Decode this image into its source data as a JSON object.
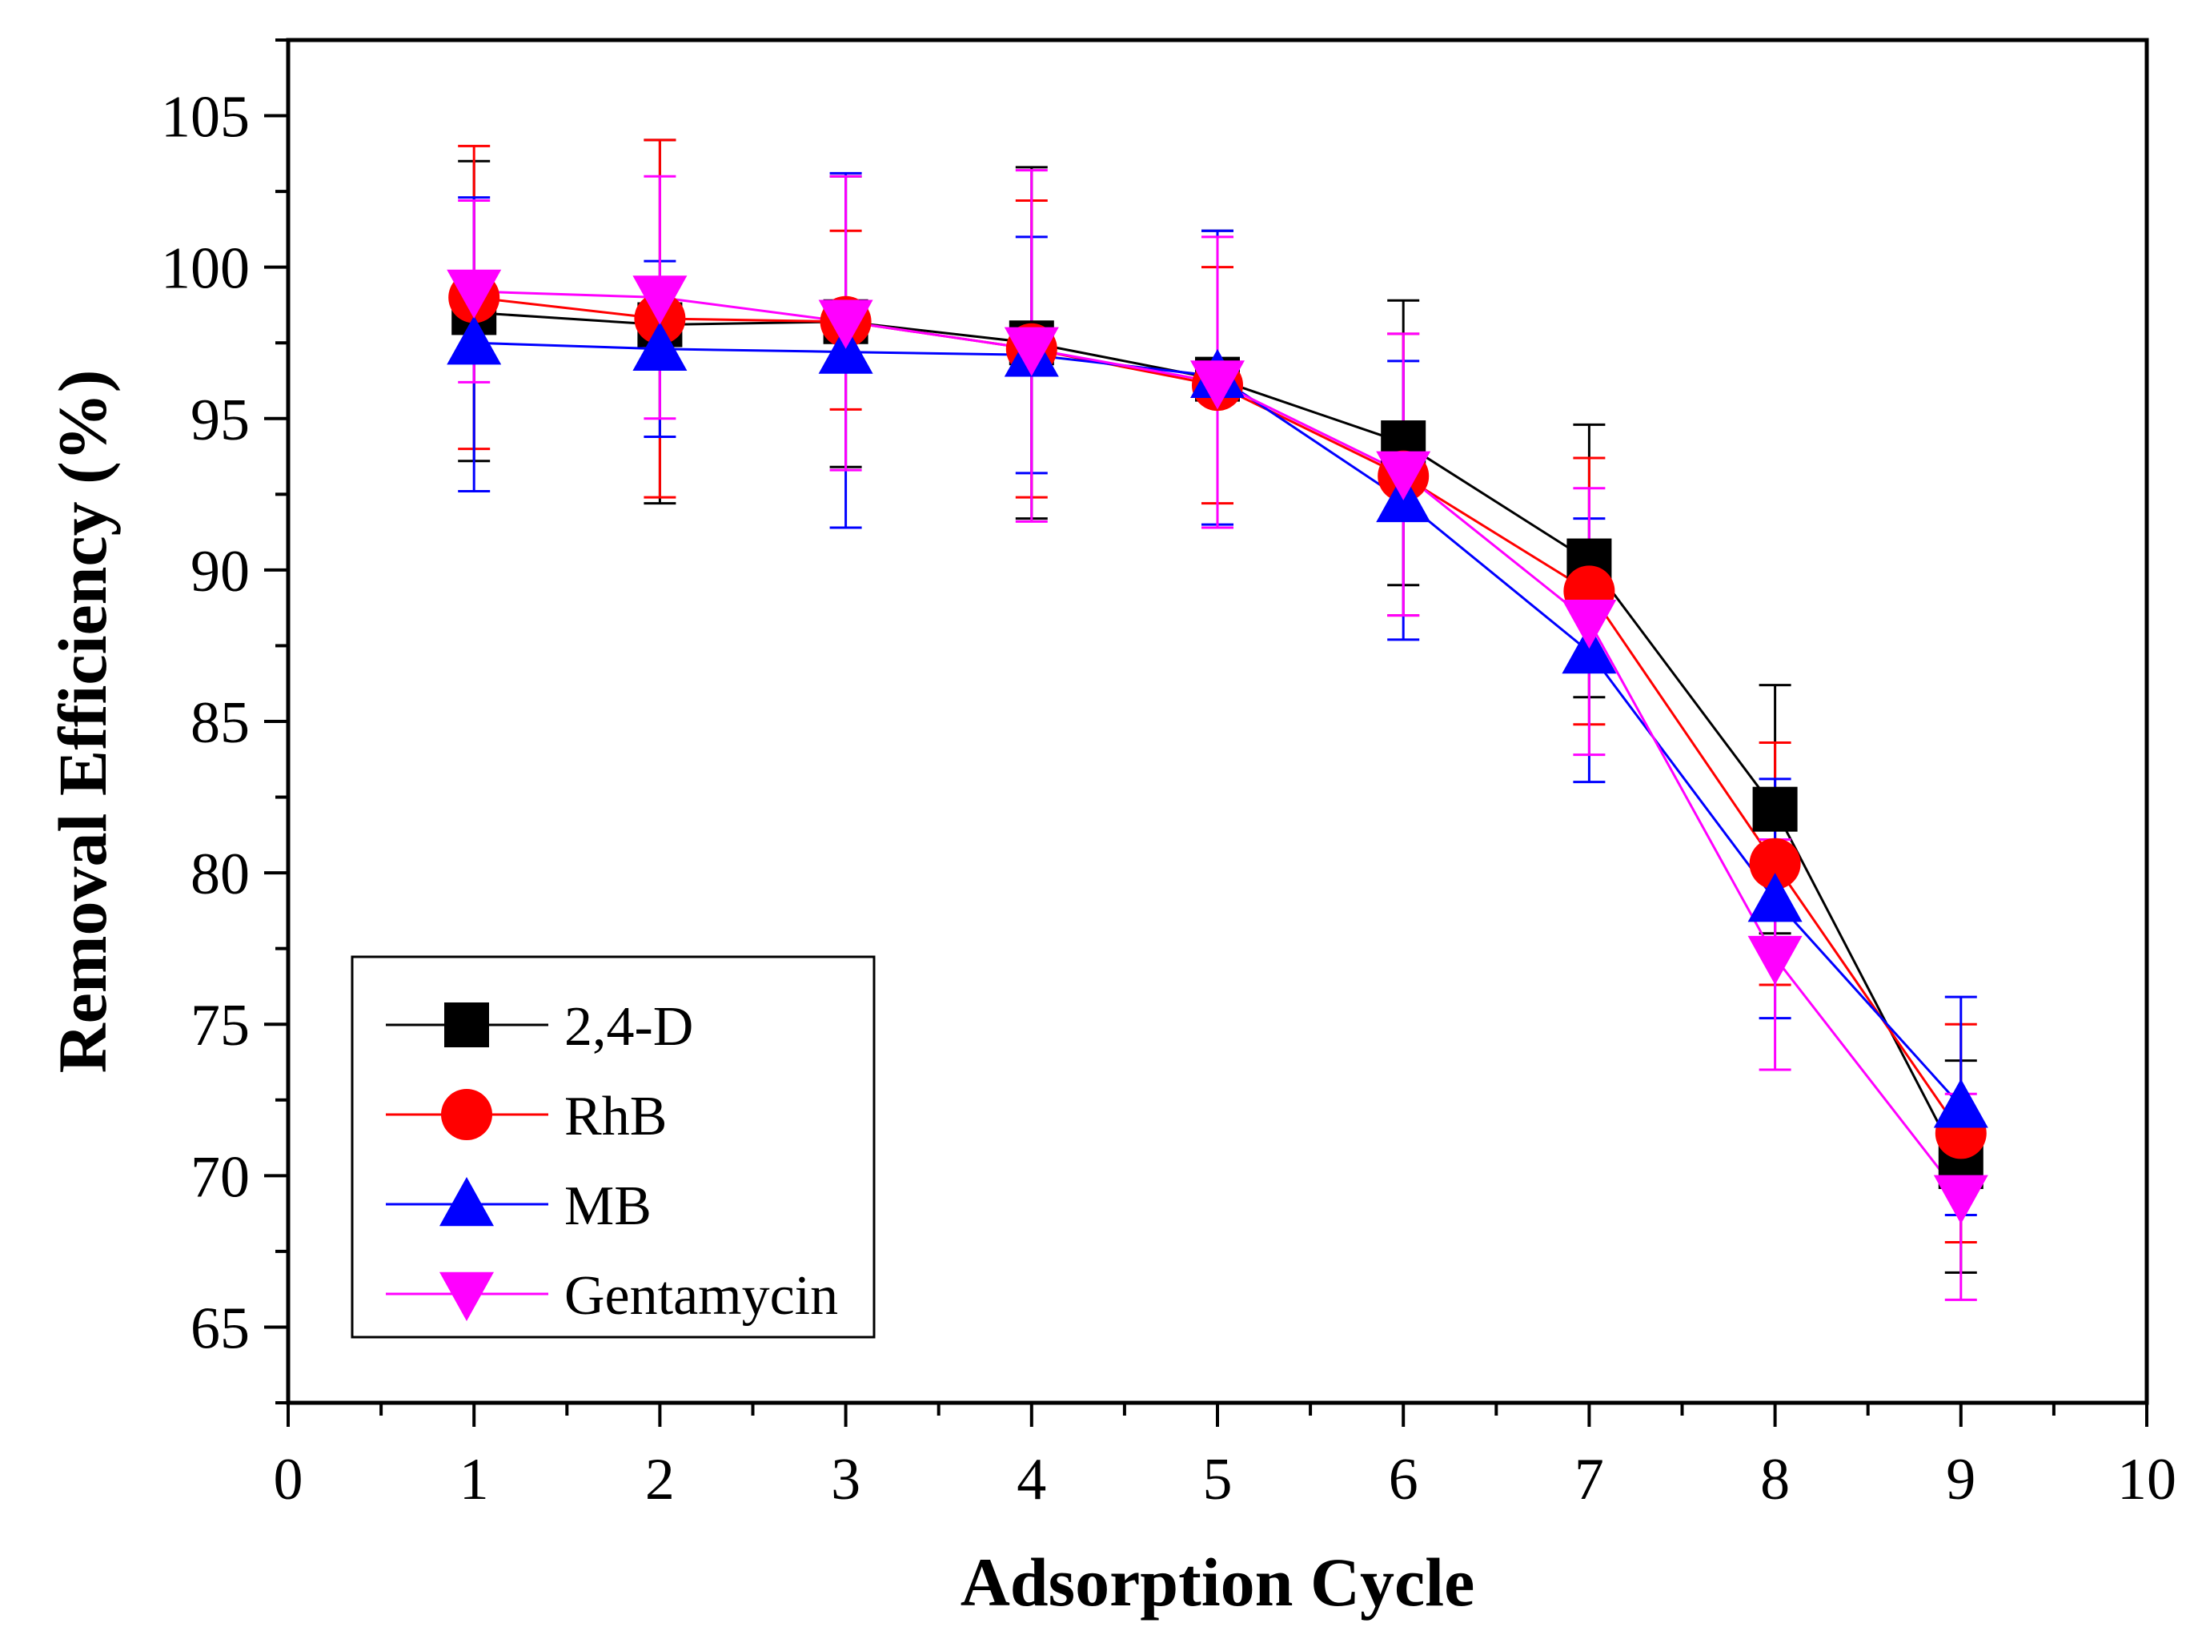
{
  "chart_data": {
    "type": "line",
    "title": "",
    "xlabel": "Adsorption Cycle",
    "ylabel": "Removal Efficiency (%)",
    "xlim": [
      0,
      10
    ],
    "ylim": [
      62.5,
      107.5
    ],
    "xticks": [
      0,
      1,
      2,
      3,
      4,
      5,
      6,
      7,
      8,
      9,
      10
    ],
    "yticks": [
      65,
      70,
      75,
      80,
      85,
      90,
      95,
      100,
      105
    ],
    "grid": false,
    "legend_position": "bottom-left",
    "x": [
      1,
      2,
      3,
      4,
      5,
      6,
      7,
      8,
      9
    ],
    "series": [
      {
        "name": "2,4-D",
        "color": "#000000",
        "marker": "square",
        "values": [
          98.5,
          98.1,
          98.2,
          97.5,
          96.3,
          94.2,
          90.3,
          82.1,
          70.3
        ],
        "err_plus": [
          5.0,
          6.1,
          4.8,
          5.8,
          4.9,
          4.7,
          4.5,
          4.1,
          3.5
        ],
        "err_minus": [
          4.9,
          5.9,
          4.8,
          5.8,
          4.9,
          4.7,
          4.5,
          4.1,
          3.5
        ]
      },
      {
        "name": "RhB",
        "color": "#ff0000",
        "marker": "circle",
        "values": [
          99.0,
          98.3,
          98.2,
          97.3,
          96.1,
          93.1,
          89.3,
          80.3,
          71.4
        ],
        "err_plus": [
          5.0,
          5.9,
          3.0,
          4.9,
          3.9,
          4.7,
          4.4,
          4.0,
          3.6
        ],
        "err_minus": [
          5.0,
          5.9,
          2.9,
          4.9,
          3.9,
          4.6,
          4.4,
          4.0,
          3.6
        ]
      },
      {
        "name": "MB",
        "color": "#0000ff",
        "marker": "triangle-up",
        "values": [
          97.5,
          97.3,
          97.2,
          97.1,
          96.4,
          92.3,
          87.3,
          79.1,
          72.3
        ],
        "err_plus": [
          4.8,
          2.9,
          5.9,
          3.9,
          4.8,
          4.6,
          4.4,
          4.0,
          3.6
        ],
        "err_minus": [
          4.9,
          2.9,
          5.8,
          3.9,
          4.9,
          4.6,
          4.3,
          3.9,
          3.6
        ]
      },
      {
        "name": "Gentamycin",
        "color": "#ff00ff",
        "marker": "triangle-down",
        "values": [
          99.2,
          99.0,
          98.2,
          97.3,
          96.2,
          93.2,
          88.3,
          77.2,
          69.3
        ],
        "err_plus": [
          3.0,
          4.0,
          4.8,
          5.9,
          4.8,
          4.6,
          4.4,
          3.9,
          3.4
        ],
        "err_minus": [
          3.0,
          4.0,
          4.9,
          5.7,
          4.8,
          4.7,
          4.4,
          3.7,
          3.4
        ]
      }
    ]
  }
}
